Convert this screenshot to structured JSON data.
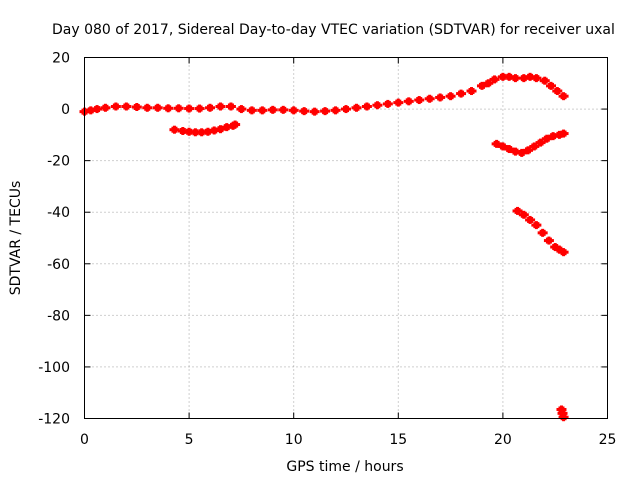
{
  "chart_data": {
    "type": "scatter",
    "title": "Day 080 of 2017, Sidereal Day-to-day VTEC variation (SDTVAR) for receiver uxal",
    "xlabel": "GPS time / hours",
    "ylabel": "SDTVAR / TECUs",
    "xlim": [
      0,
      25
    ],
    "ylim": [
      -120,
      20
    ],
    "xticks": [
      0,
      5,
      10,
      15,
      20,
      25
    ],
    "yticks": [
      20,
      0,
      -20,
      -40,
      -60,
      -80,
      -100,
      -120
    ],
    "xtick_labels": [
      "0",
      "5",
      "10",
      "15",
      "20",
      "25"
    ],
    "ytick_labels": [
      "20",
      "0",
      "-20",
      "-40",
      "-60",
      "-80",
      "-100",
      "-120"
    ],
    "grid": true,
    "marker": "cross",
    "color": "#ff0000",
    "series": [
      {
        "x": [
          0.0,
          0.3,
          0.6,
          1.0,
          1.5,
          2.0,
          2.5,
          3.0,
          3.5,
          4.0,
          4.5,
          5.0,
          5.5,
          6.0,
          6.5,
          7.0,
          7.5,
          8.0,
          8.5,
          9.0,
          9.5,
          10.0,
          10.5,
          11.0,
          11.5,
          12.0,
          12.5,
          13.0,
          13.5,
          14.0,
          14.5,
          15.0,
          15.5,
          16.0,
          16.5,
          17.0,
          17.5,
          18.0,
          18.5,
          19.0,
          19.3,
          19.6,
          20.0,
          20.3,
          20.6,
          21.0,
          21.3,
          21.6,
          22.0,
          22.3,
          22.6,
          22.9
        ],
        "y": [
          -1.0,
          -0.5,
          0.0,
          0.5,
          1.0,
          1.0,
          0.8,
          0.5,
          0.5,
          0.3,
          0.3,
          0.2,
          0.2,
          0.5,
          1.0,
          1.0,
          0.0,
          -0.5,
          -0.5,
          -0.3,
          -0.3,
          -0.5,
          -0.8,
          -1.0,
          -0.8,
          -0.5,
          0.0,
          0.5,
          1.0,
          1.5,
          2.0,
          2.5,
          3.0,
          3.5,
          4.0,
          4.5,
          5.0,
          6.0,
          7.0,
          9.0,
          10.0,
          11.5,
          12.5,
          12.5,
          12.0,
          12.0,
          12.5,
          12.0,
          11.0,
          9.0,
          7.0,
          5.0
        ]
      },
      {
        "x": [
          4.3,
          4.7,
          5.0,
          5.3,
          5.6,
          5.9,
          6.2,
          6.5,
          6.8,
          7.1,
          7.2
        ],
        "y": [
          -8.0,
          -8.5,
          -8.8,
          -9.0,
          -9.0,
          -8.8,
          -8.3,
          -7.8,
          -7.0,
          -6.5,
          -6.0
        ]
      },
      {
        "x": [
          19.7,
          20.0,
          20.3,
          20.6,
          20.9,
          21.2,
          21.5,
          21.8,
          22.1,
          22.4,
          22.7,
          22.9
        ],
        "y": [
          -13.5,
          -14.5,
          -15.5,
          -16.5,
          -17.0,
          -16.0,
          -14.5,
          -13.0,
          -11.5,
          -10.5,
          -10.0,
          -9.5
        ]
      },
      {
        "x": [
          20.7,
          21.0,
          21.3,
          21.6,
          21.9,
          22.2,
          22.5,
          22.7,
          22.9
        ],
        "y": [
          -39.5,
          -41.0,
          -43.0,
          -45.0,
          -48.0,
          -51.0,
          -53.5,
          -54.5,
          -55.5
        ]
      },
      {
        "x": [
          22.8,
          22.85,
          22.9
        ],
        "y": [
          -116.5,
          -118.0,
          -119.5
        ]
      }
    ]
  }
}
